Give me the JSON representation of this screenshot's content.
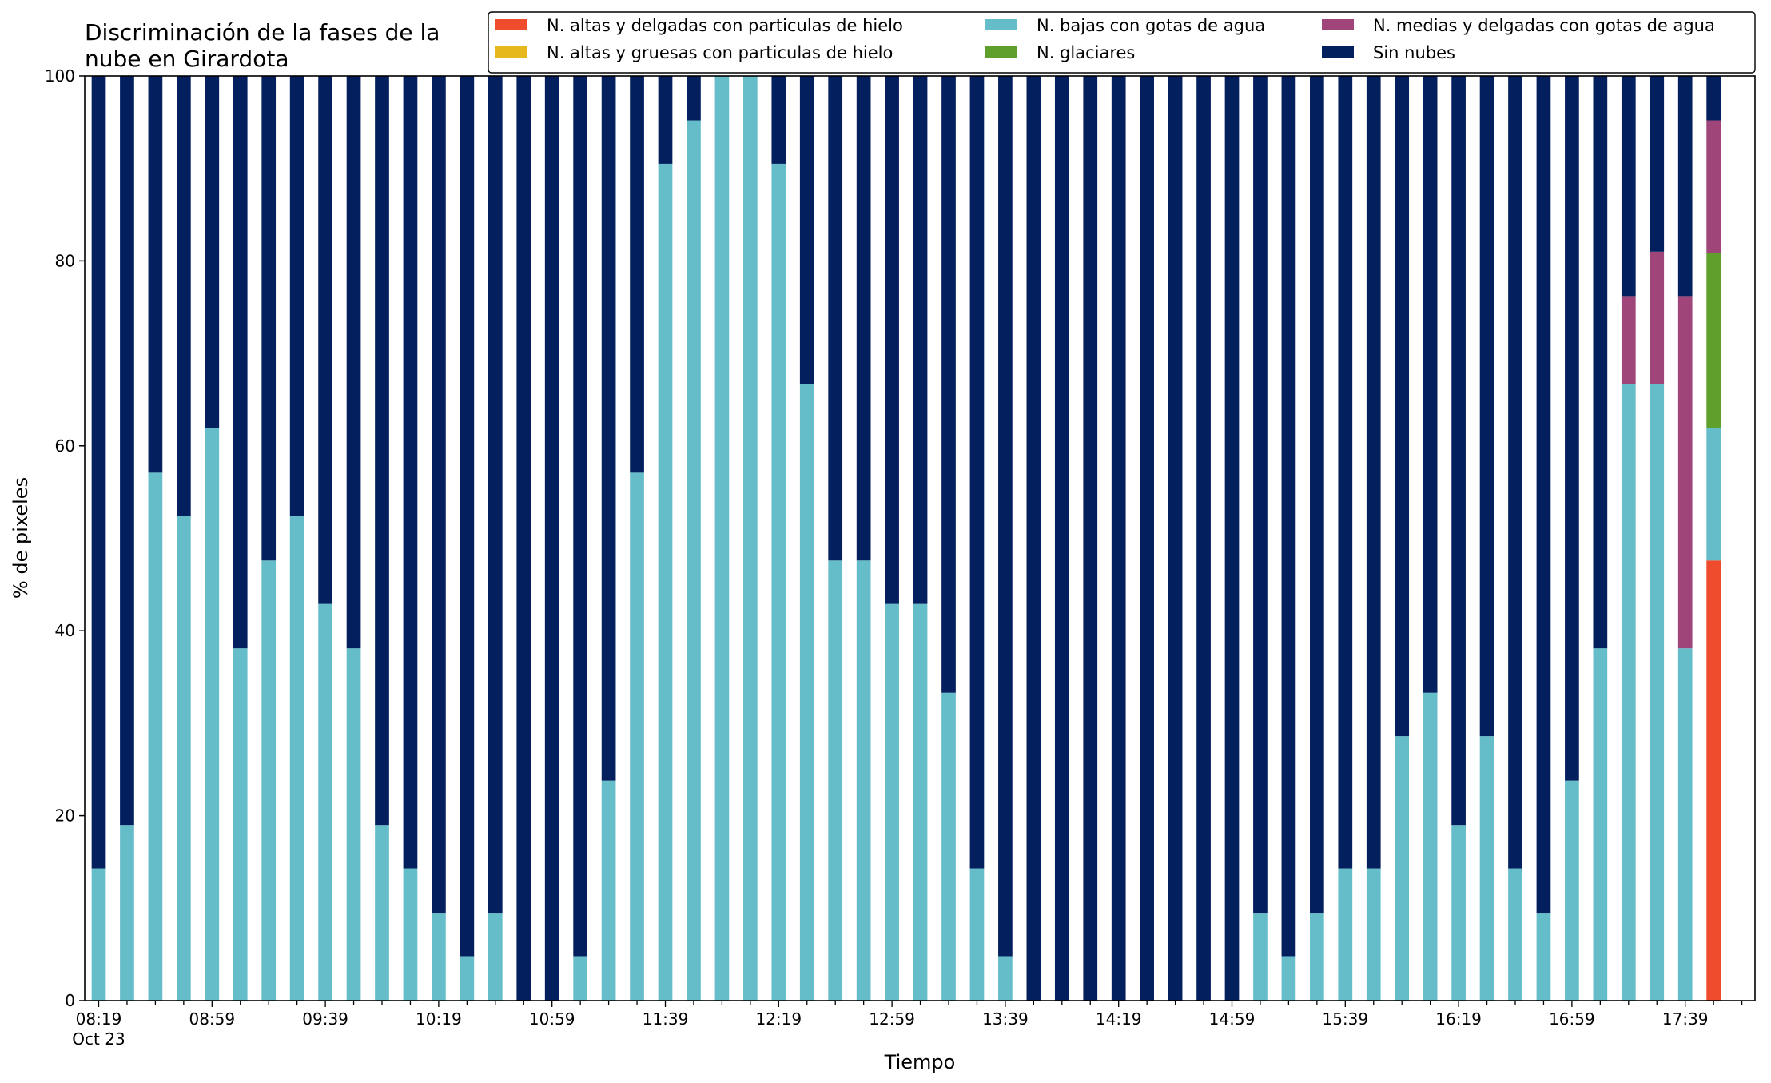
{
  "chart_data": {
    "type": "bar",
    "stacked": true,
    "title_lines": [
      "Discriminación de la fases de la",
      "nube en Girardota"
    ],
    "xlabel": "Tiempo",
    "ylabel": "% de pixeles",
    "ylim": [
      0,
      100
    ],
    "yticks": [
      0,
      20,
      40,
      60,
      80,
      100
    ],
    "grid": false,
    "legend_position": "top-right",
    "legend_columns": 3,
    "x_tick_labels": [
      "08:19",
      "08:59",
      "09:39",
      "10:19",
      "10:59",
      "11:39",
      "12:19",
      "12:59",
      "13:39",
      "14:19",
      "14:59",
      "15:39",
      "16:19",
      "16:59",
      "17:39"
    ],
    "x_date_label": "Oct 23",
    "categories": [
      "08:19",
      "08:29",
      "08:39",
      "08:49",
      "08:59",
      "09:09",
      "09:19",
      "09:29",
      "09:39",
      "09:49",
      "09:59",
      "10:09",
      "10:19",
      "10:29",
      "10:39",
      "10:49",
      "10:59",
      "11:09",
      "11:19",
      "11:29",
      "11:39",
      "11:49",
      "11:59",
      "12:09",
      "12:19",
      "12:29",
      "12:39",
      "12:49",
      "12:59",
      "13:09",
      "13:19",
      "13:29",
      "13:39",
      "13:49",
      "13:59",
      "14:09",
      "14:19",
      "14:29",
      "14:39",
      "14:49",
      "14:59",
      "15:09",
      "15:19",
      "15:29",
      "15:39",
      "15:49",
      "15:59",
      "16:09",
      "16:19",
      "16:29",
      "16:39",
      "16:49",
      "16:59",
      "17:09",
      "17:19",
      "17:29",
      "17:39",
      "17:49"
    ],
    "series": [
      {
        "name": "N. altas y delgadas con particulas de hielo",
        "color": "#ee4c2c",
        "values": [
          0,
          0,
          0,
          0,
          0,
          0,
          0,
          0,
          0,
          0,
          0,
          0,
          0,
          0,
          0,
          0,
          0,
          0,
          0,
          0,
          0,
          0,
          0,
          0,
          0,
          0,
          0,
          0,
          0,
          0,
          0,
          0,
          0,
          0,
          0,
          0,
          0,
          0,
          0,
          0,
          0,
          0,
          0,
          0,
          0,
          0,
          0,
          0,
          0,
          0,
          0,
          0,
          0,
          0,
          0,
          0,
          0,
          47.6
        ]
      },
      {
        "name": "N. altas y gruesas con particulas de hielo",
        "color": "#e6b81e",
        "values": [
          0,
          0,
          0,
          0,
          0,
          0,
          0,
          0,
          0,
          0,
          0,
          0,
          0,
          0,
          0,
          0,
          0,
          0,
          0,
          0,
          0,
          0,
          0,
          0,
          0,
          0,
          0,
          0,
          0,
          0,
          0,
          0,
          0,
          0,
          0,
          0,
          0,
          0,
          0,
          0,
          0,
          0,
          0,
          0,
          0,
          0,
          0,
          0,
          0,
          0,
          0,
          0,
          0,
          0,
          0,
          0,
          0,
          0
        ]
      },
      {
        "name": "N. bajas con gotas de agua",
        "color": "#66bdca",
        "values": [
          14.3,
          19.0,
          57.1,
          52.4,
          61.9,
          38.1,
          47.6,
          52.4,
          42.9,
          38.1,
          19.0,
          14.3,
          9.5,
          4.8,
          9.5,
          0,
          0,
          4.8,
          23.8,
          57.1,
          90.5,
          95.2,
          100,
          100,
          90.5,
          66.7,
          47.6,
          47.6,
          42.9,
          42.9,
          33.3,
          14.3,
          4.8,
          0,
          0,
          0,
          0,
          0,
          0,
          0,
          0,
          9.5,
          4.8,
          9.5,
          14.3,
          14.3,
          28.6,
          33.3,
          19.0,
          28.6,
          14.3,
          9.5,
          23.8,
          38.1,
          66.7,
          66.7,
          38.1,
          14.3
        ]
      },
      {
        "name": "N. glaciares",
        "color": "#5fa02c",
        "values": [
          0,
          0,
          0,
          0,
          0,
          0,
          0,
          0,
          0,
          0,
          0,
          0,
          0,
          0,
          0,
          0,
          0,
          0,
          0,
          0,
          0,
          0,
          0,
          0,
          0,
          0,
          0,
          0,
          0,
          0,
          0,
          0,
          0,
          0,
          0,
          0,
          0,
          0,
          0,
          0,
          0,
          0,
          0,
          0,
          0,
          0,
          0,
          0,
          0,
          0,
          0,
          0,
          0,
          0,
          0,
          0,
          0,
          19.0
        ]
      },
      {
        "name": "N. medias y delgadas con gotas de agua",
        "color": "#a0457a",
        "values": [
          0,
          0,
          0,
          0,
          0,
          0,
          0,
          0,
          0,
          0,
          0,
          0,
          0,
          0,
          0,
          0,
          0,
          0,
          0,
          0,
          0,
          0,
          0,
          0,
          0,
          0,
          0,
          0,
          0,
          0,
          0,
          0,
          0,
          0,
          0,
          0,
          0,
          0,
          0,
          0,
          0,
          0,
          0,
          0,
          0,
          0,
          0,
          0,
          0,
          0,
          0,
          0,
          0,
          0,
          9.5,
          14.3,
          38.1,
          14.3
        ]
      },
      {
        "name": "Sin nubes",
        "color": "#031f5e",
        "values": [
          85.7,
          81.0,
          42.9,
          47.6,
          38.1,
          61.9,
          52.4,
          47.6,
          57.1,
          61.9,
          81.0,
          85.7,
          90.5,
          95.2,
          90.5,
          100,
          100,
          95.2,
          76.2,
          42.9,
          9.5,
          4.8,
          0,
          0,
          9.5,
          33.3,
          52.4,
          52.4,
          57.1,
          57.1,
          66.7,
          85.7,
          95.2,
          100,
          100,
          100,
          100,
          100,
          100,
          100,
          100,
          90.5,
          95.2,
          90.5,
          85.7,
          85.7,
          71.4,
          66.7,
          81.0,
          71.4,
          85.7,
          90.5,
          76.2,
          61.9,
          23.8,
          19.0,
          23.8,
          4.8
        ]
      }
    ],
    "legend_order": [
      0,
      1,
      2,
      3,
      4,
      5
    ]
  }
}
